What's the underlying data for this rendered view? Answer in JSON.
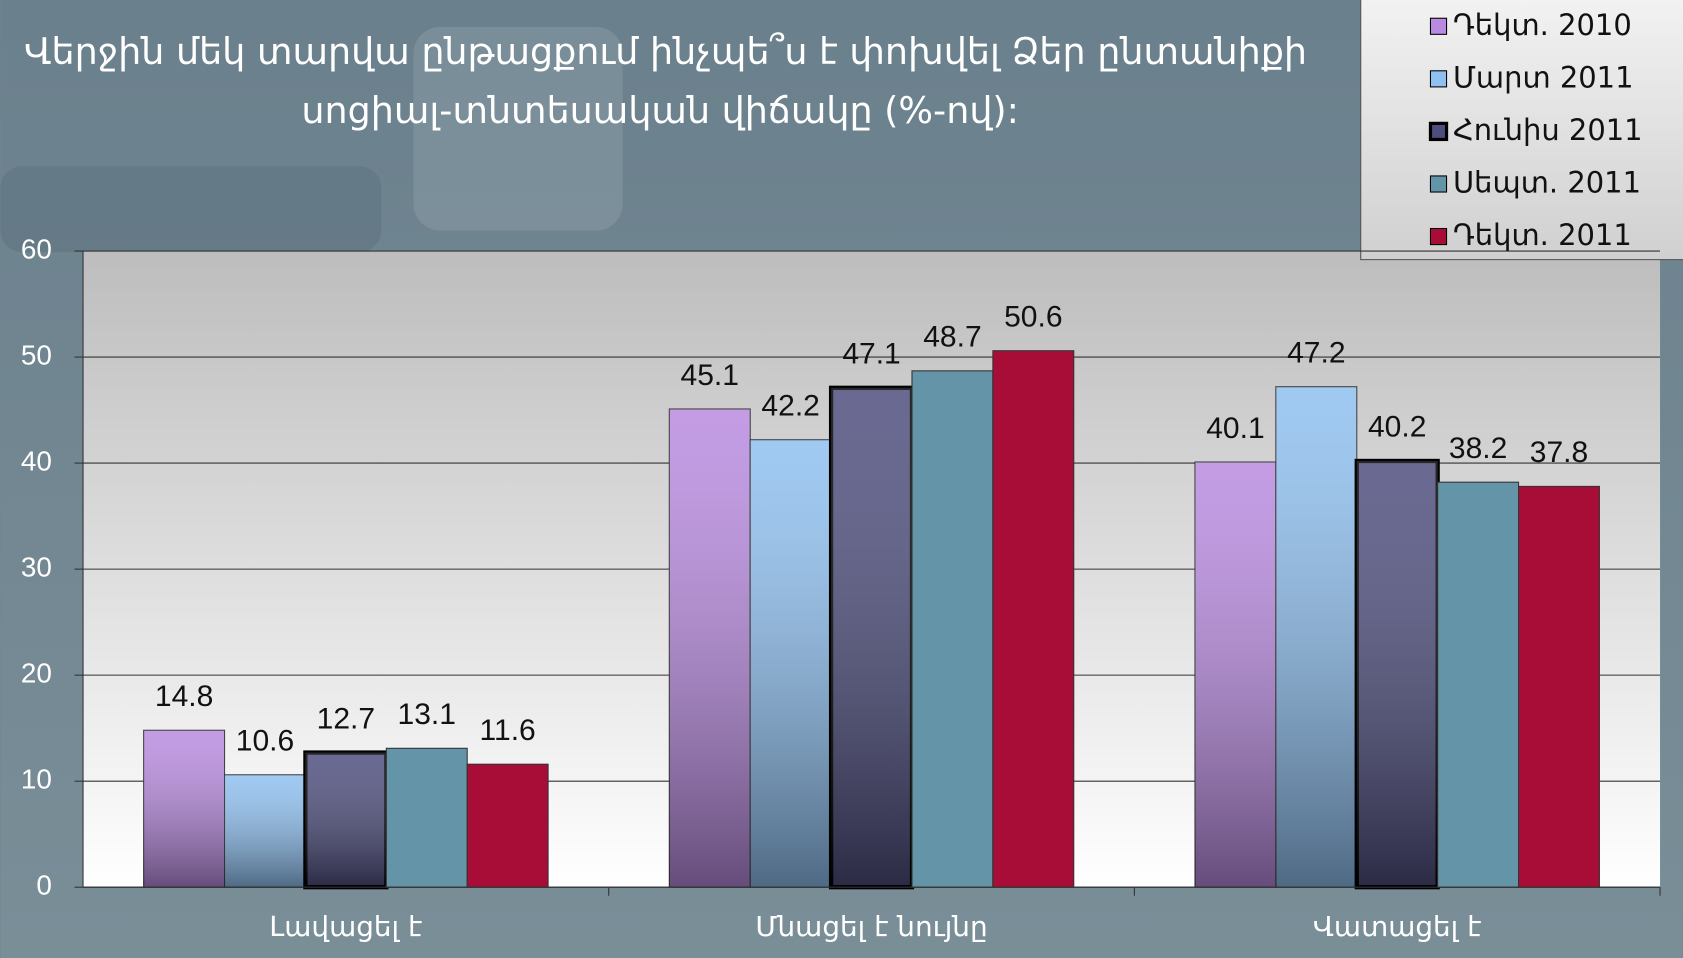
{
  "chart_data": {
    "type": "bar",
    "title": [
      "Վերջին մեկ տարվա ընթացքում ինչպե՞ս է փոխվել Ձեր ընտանիքի",
      "սոցիալ-տնտեսական վիճակը  (%-ով):"
    ],
    "categories": [
      "Լավացել է",
      "Մնացել է նույնը",
      "Վատացել է"
    ],
    "series": [
      {
        "name": "Դեկտ. 2010",
        "color": "#b98be0",
        "values": [
          14.8,
          45.1,
          40.1
        ]
      },
      {
        "name": "Մարտ 2011",
        "color": "#8fc0f0",
        "values": [
          10.6,
          42.2,
          47.2
        ]
      },
      {
        "name": "Հունիս 2011",
        "color": "#4e4e7e",
        "values": [
          12.7,
          47.1,
          40.2
        ]
      },
      {
        "name": "Սեպտ. 2011",
        "color": "#6494a7",
        "values": [
          13.1,
          48.7,
          38.2
        ]
      },
      {
        "name": "Դեկտ. 2011",
        "color": "#a80d38",
        "values": [
          11.6,
          50.6,
          37.8
        ]
      }
    ],
    "ylim": [
      0,
      60
    ],
    "yticks": [
      0,
      10,
      20,
      30,
      40,
      50,
      60
    ],
    "grid": true,
    "legend": "top-right"
  }
}
